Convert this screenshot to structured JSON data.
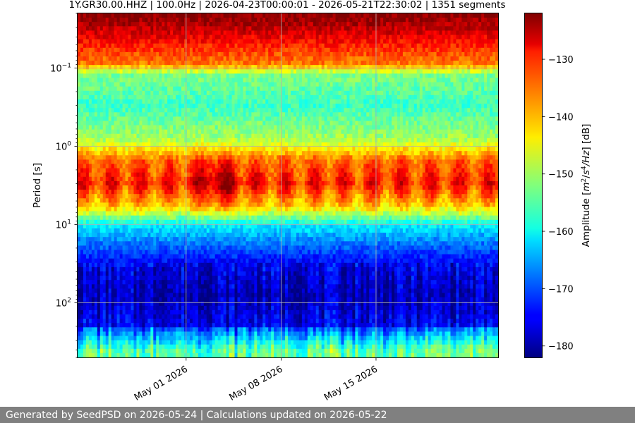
{
  "chart_data": {
    "type": "heatmap",
    "title": "1Y.GR30.00.HHZ | 100.0Hz | 2026-04-23T00:00:01 - 2026-05-21T22:30:02 | 1351 segments",
    "ylabel": "Period [s]",
    "yscale": "log",
    "yaxis_inverted": true,
    "ylim": [
      0.02,
      500
    ],
    "ytick_labels": [
      {
        "value": 0.1,
        "base": "10",
        "exp": "−1"
      },
      {
        "value": 1,
        "base": "10",
        "exp": "0"
      },
      {
        "value": 10,
        "base": "10",
        "exp": "1"
      },
      {
        "value": 100,
        "base": "10",
        "exp": "2"
      }
    ],
    "xlim": [
      "2026-04-23",
      "2026-05-24"
    ],
    "xtick_labels": [
      {
        "date": "2026-05-01",
        "label": "May 01 2026"
      },
      {
        "date": "2026-05-08",
        "label": "May 08 2026"
      },
      {
        "date": "2026-05-15",
        "label": "May 15 2026"
      }
    ],
    "grid": true,
    "colormap": "jet",
    "colorbar": {
      "label_pre": "Amplitude [",
      "label_m": "m",
      "label_sup1": "2",
      "label_slash": "/",
      "label_s": "s",
      "label_sup2": "4",
      "label_hz": "/Hz",
      "label_post": "] [dB]",
      "range": [
        -182,
        -122
      ],
      "ticks": [
        -130,
        -140,
        -150,
        -160,
        -170,
        -180
      ],
      "tick_labels": [
        "−130",
        "−140",
        "−150",
        "−160",
        "−170",
        "−180"
      ]
    },
    "period_profile_db": [
      {
        "period": 0.02,
        "db": -122
      },
      {
        "period": 0.035,
        "db": -127
      },
      {
        "period": 0.06,
        "db": -133
      },
      {
        "period": 0.09,
        "db": -137
      },
      {
        "period": 0.12,
        "db": -152
      },
      {
        "period": 0.3,
        "db": -156
      },
      {
        "period": 0.8,
        "db": -150
      },
      {
        "period": 1.5,
        "db": -136
      },
      {
        "period": 3,
        "db": -131
      },
      {
        "period": 6,
        "db": -142
      },
      {
        "period": 10,
        "db": -160
      },
      {
        "period": 18,
        "db": -168
      },
      {
        "period": 35,
        "db": -176
      },
      {
        "period": 80,
        "db": -179
      },
      {
        "period": 200,
        "db": -175
      },
      {
        "period": 400,
        "db": -158
      }
    ]
  },
  "footer": {
    "text": "Generated by SeedPSD on 2026-05-24 | Calculations updated on 2026-05-22"
  }
}
